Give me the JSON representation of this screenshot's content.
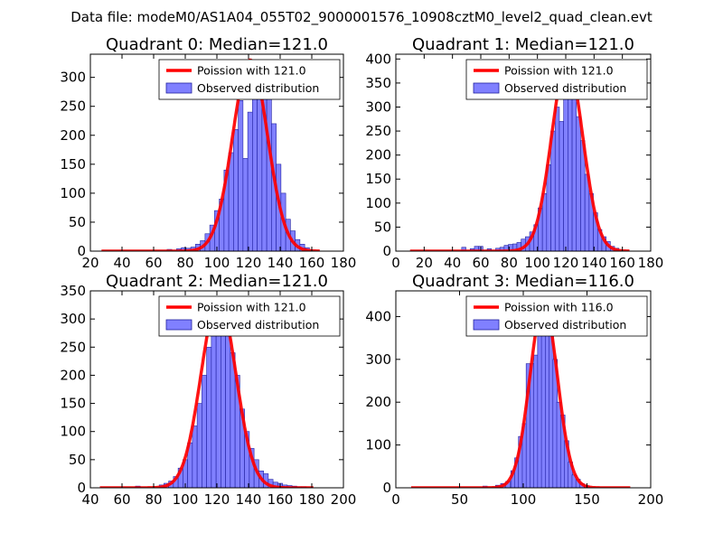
{
  "suptitle": "Data file: modeM0/AS1A04_055T02_9000001576_10908cztM0_level2_quad_clean.evt",
  "colors": {
    "bar_fill": "#8080ff",
    "bar_edge": "#2020a0",
    "poisson_line": "#ff0000"
  },
  "chart_data": [
    {
      "type": "bar",
      "title": "Quadrant 0: Median=121.0",
      "legend": {
        "placement": "top-right",
        "line_label": "Poission with 121.0",
        "bar_label": "Observed distribution"
      },
      "xlim": [
        20,
        180
      ],
      "ylim": [
        0,
        340
      ],
      "xticks": [
        20,
        40,
        60,
        80,
        100,
        120,
        140,
        160,
        180
      ],
      "yticks": [
        0,
        50,
        100,
        150,
        200,
        250,
        300
      ],
      "bin_width": 3,
      "bar_x": [
        70,
        76,
        79,
        82,
        85,
        88,
        91,
        94,
        97,
        100,
        103,
        106,
        109,
        112,
        115,
        118,
        121,
        124,
        127,
        130,
        133,
        136,
        139,
        142,
        145,
        148,
        151,
        154,
        157,
        160
      ],
      "bar_y": [
        3,
        4,
        6,
        5,
        7,
        12,
        18,
        30,
        45,
        70,
        90,
        140,
        170,
        210,
        260,
        160,
        240,
        300,
        320,
        310,
        280,
        220,
        150,
        100,
        55,
        35,
        20,
        12,
        6,
        2
      ],
      "poisson": {
        "mean": 121.0,
        "x_range": [
          27,
          165
        ],
        "peak": 330
      }
    },
    {
      "type": "bar",
      "title": "Quadrant 1: Median=121.0",
      "legend": {
        "placement": "top-right",
        "line_label": "Poission with 121.0",
        "bar_label": "Observed distribution"
      },
      "xlim": [
        0,
        180
      ],
      "ylim": [
        0,
        410
      ],
      "xticks": [
        0,
        20,
        40,
        60,
        80,
        100,
        120,
        140,
        160,
        180
      ],
      "yticks": [
        0,
        50,
        100,
        150,
        200,
        250,
        300,
        350,
        400
      ],
      "bin_width": 3,
      "bar_x": [
        48,
        54,
        57,
        60,
        66,
        72,
        75,
        78,
        81,
        84,
        87,
        90,
        93,
        96,
        99,
        102,
        105,
        108,
        111,
        114,
        117,
        120,
        123,
        126,
        129,
        132,
        135,
        138,
        141,
        144,
        147,
        150,
        153,
        156
      ],
      "bar_y": [
        8,
        5,
        10,
        10,
        5,
        6,
        8,
        12,
        14,
        15,
        18,
        25,
        30,
        40,
        55,
        90,
        120,
        180,
        250,
        300,
        270,
        320,
        360,
        330,
        280,
        230,
        160,
        120,
        80,
        45,
        30,
        20,
        10,
        6
      ],
      "poisson": {
        "mean": 121.0,
        "x_range": [
          10,
          165
        ],
        "peak": 395
      }
    },
    {
      "type": "bar",
      "title": "Quadrant 2: Median=121.0",
      "legend": {
        "placement": "top-right",
        "line_label": "Poission with 121.0",
        "bar_label": "Observed distribution"
      },
      "xlim": [
        40,
        200
      ],
      "ylim": [
        0,
        350
      ],
      "xticks": [
        40,
        60,
        80,
        100,
        120,
        140,
        160,
        180,
        200
      ],
      "yticks": [
        0,
        50,
        100,
        150,
        200,
        250,
        300,
        350
      ],
      "bin_width": 3,
      "bar_x": [
        70,
        85,
        88,
        91,
        94,
        97,
        100,
        103,
        106,
        109,
        112,
        115,
        118,
        121,
        124,
        127,
        130,
        133,
        136,
        139,
        142,
        145,
        148,
        151,
        154,
        157,
        160,
        163,
        166,
        169,
        172,
        175
      ],
      "bar_y": [
        3,
        5,
        8,
        12,
        20,
        35,
        50,
        80,
        110,
        150,
        200,
        250,
        270,
        310,
        320,
        280,
        240,
        200,
        140,
        100,
        70,
        50,
        30,
        25,
        15,
        10,
        8,
        5,
        4,
        3,
        2,
        2
      ],
      "poisson": {
        "mean": 121.0,
        "x_range": [
          46,
          181
        ],
        "peak": 335
      }
    },
    {
      "type": "bar",
      "title": "Quadrant 3: Median=116.0",
      "legend": {
        "placement": "top-right",
        "line_label": "Poission with 116.0",
        "bar_label": "Observed distribution"
      },
      "xlim": [
        0,
        200
      ],
      "ylim": [
        0,
        460
      ],
      "xticks": [
        0,
        50,
        100,
        150,
        200
      ],
      "yticks": [
        0,
        100,
        200,
        300,
        400
      ],
      "bin_width": 3.5,
      "bar_x": [
        70,
        80,
        84,
        88,
        92,
        95,
        98,
        101,
        104,
        107,
        110,
        113,
        116,
        119,
        122,
        125,
        128,
        131,
        134,
        137,
        140,
        143,
        146,
        150
      ],
      "bar_y": [
        4,
        6,
        10,
        15,
        40,
        70,
        120,
        150,
        290,
        290,
        310,
        400,
        420,
        360,
        370,
        300,
        200,
        170,
        110,
        60,
        30,
        20,
        10,
        5
      ],
      "poisson": {
        "mean": 116.0,
        "x_range": [
          12,
          184
        ],
        "peak": 430
      }
    }
  ]
}
